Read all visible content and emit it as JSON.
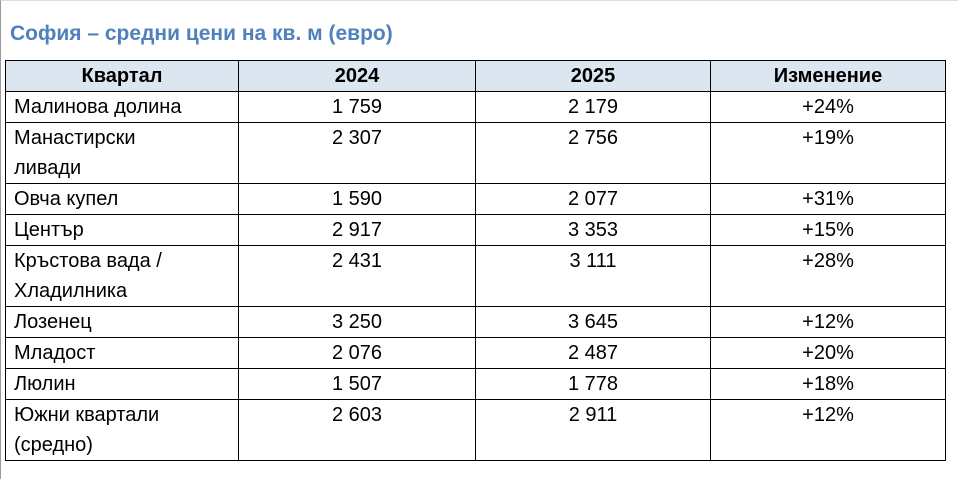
{
  "title": "София – средни цени на кв. м (евро)",
  "table": {
    "header": [
      "Квартал",
      "2024",
      "2025",
      "Изменение"
    ],
    "rows": [
      [
        "Малинова долина",
        "1 759",
        "2 179",
        "+24%"
      ],
      [
        "Манастирски ливади",
        "2 307",
        "2 756",
        "+19%"
      ],
      [
        "Овча купел",
        "1 590",
        "2 077",
        "+31%"
      ],
      [
        "Център",
        "2 917",
        "3 353",
        "+15%"
      ],
      [
        "Кръстова вада / Хладилника",
        "2 431",
        "3 111",
        "+28%"
      ],
      [
        "Лозенец",
        "3 250",
        "3 645",
        "+12%"
      ],
      [
        "Младост",
        "2 076",
        "2 487",
        "+20%"
      ],
      [
        "Люлин",
        "1 507",
        "1 778",
        "+18%"
      ],
      [
        "Южни квартали (средно)",
        "2 603",
        "2 911",
        "+12%"
      ]
    ]
  }
}
